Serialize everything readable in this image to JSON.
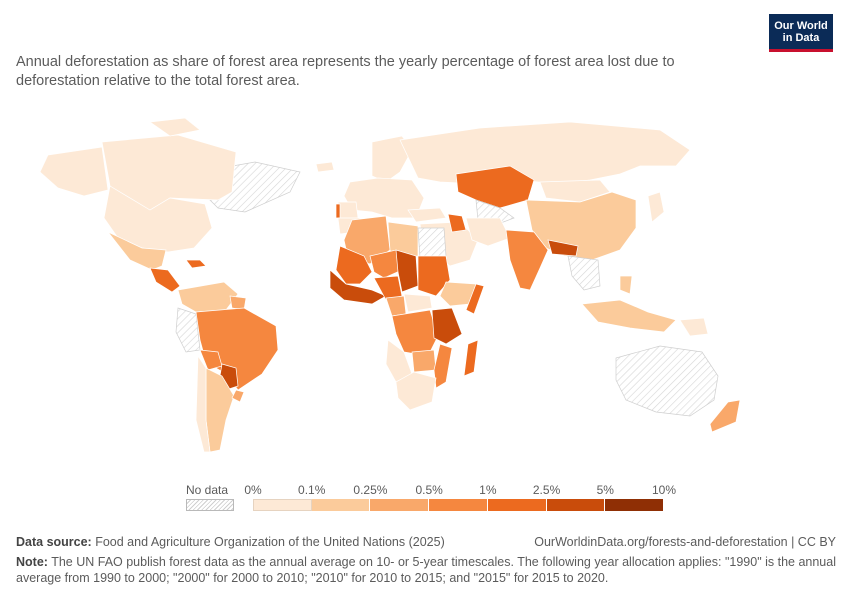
{
  "logo": {
    "line1": "Our World",
    "line2": "in Data"
  },
  "subtitle": "Annual deforestation as share of forest area represents the yearly percentage of forest area lost due to deforestation relative to the total forest area.",
  "legend": {
    "no_data_label": "No data",
    "ticks": [
      "0%",
      "0.1%",
      "0.25%",
      "0.5%",
      "1%",
      "2.5%",
      "5%",
      "10%"
    ],
    "colors": [
      "#fde9d6",
      "#fbcb9b",
      "#f9a86a",
      "#f5873f",
      "#ec6a1f",
      "#c94c0b",
      "#8f2f05"
    ]
  },
  "footer": {
    "source_label": "Data source:",
    "source_text": "Food and Agriculture Organization of the United Nations (2025)",
    "url": "OurWorldinData.org/forests-and-deforestation | CC BY",
    "note_label": "Note:",
    "note_text": "The UN FAO publish forest data as the annual average on 10- or 5-year timescales. The following year allocation applies: \"1990\" is the annual average from 1990 to 2000; \"2000\" for 2000 to 2010; \"2010\" for 2010 to 2015; and \"2015\" for 2015 to 2020."
  },
  "map_colors": {
    "no_data_stroke": "#d4d4d4",
    "border": "#ffffff"
  }
}
